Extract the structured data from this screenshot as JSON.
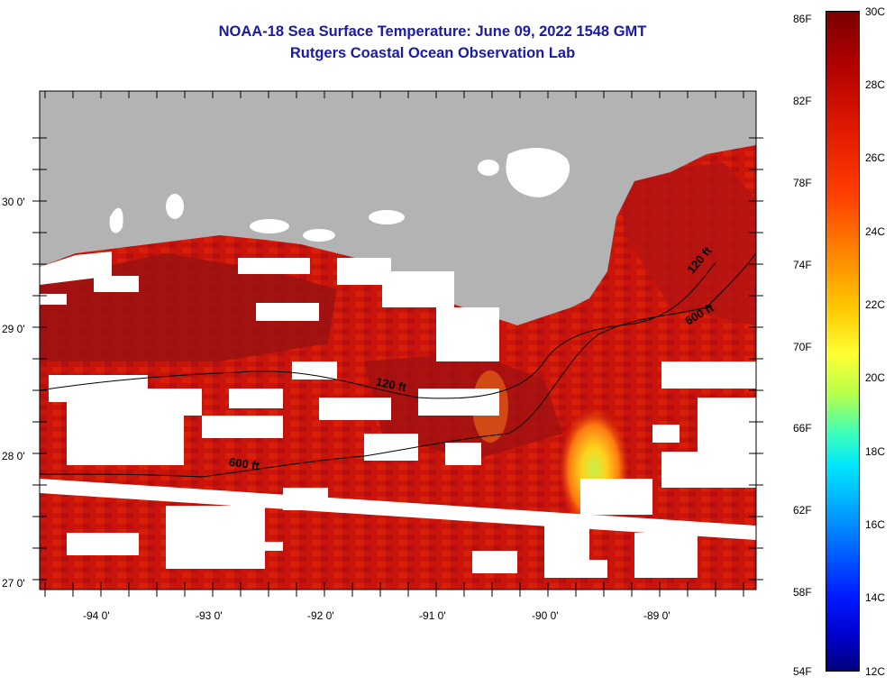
{
  "title": {
    "line1": "NOAA-18 Sea Surface Temperature:  June 09, 2022 1548 GMT",
    "line2": "Rutgers Coastal Ocean Observation Lab"
  },
  "map": {
    "lat_labels": [
      "30 0'",
      "29 0'",
      "28 0'",
      "27 0'"
    ],
    "lon_labels": [
      "-94 0'",
      "-93 0'",
      "-92 0'",
      "-91 0'",
      "-90 0'",
      "-89 0'"
    ],
    "contour_labels": [
      "120 ft",
      "600 ft",
      "120 ft",
      "600 ft"
    ],
    "colors": {
      "land": "#b3b3b3",
      "cloud": "#ffffff",
      "sea_warm": "#cc1408",
      "sea_hot": "#8e1010",
      "upwelling": "#ffd21e"
    }
  },
  "colorbar": {
    "fahrenheit": [
      "86F",
      "82F",
      "78F",
      "74F",
      "70F",
      "66F",
      "62F",
      "58F",
      "54F"
    ],
    "celsius": [
      "30C",
      "28C",
      "26C",
      "24C",
      "22C",
      "20C",
      "18C",
      "16C",
      "14C",
      "12C"
    ]
  }
}
